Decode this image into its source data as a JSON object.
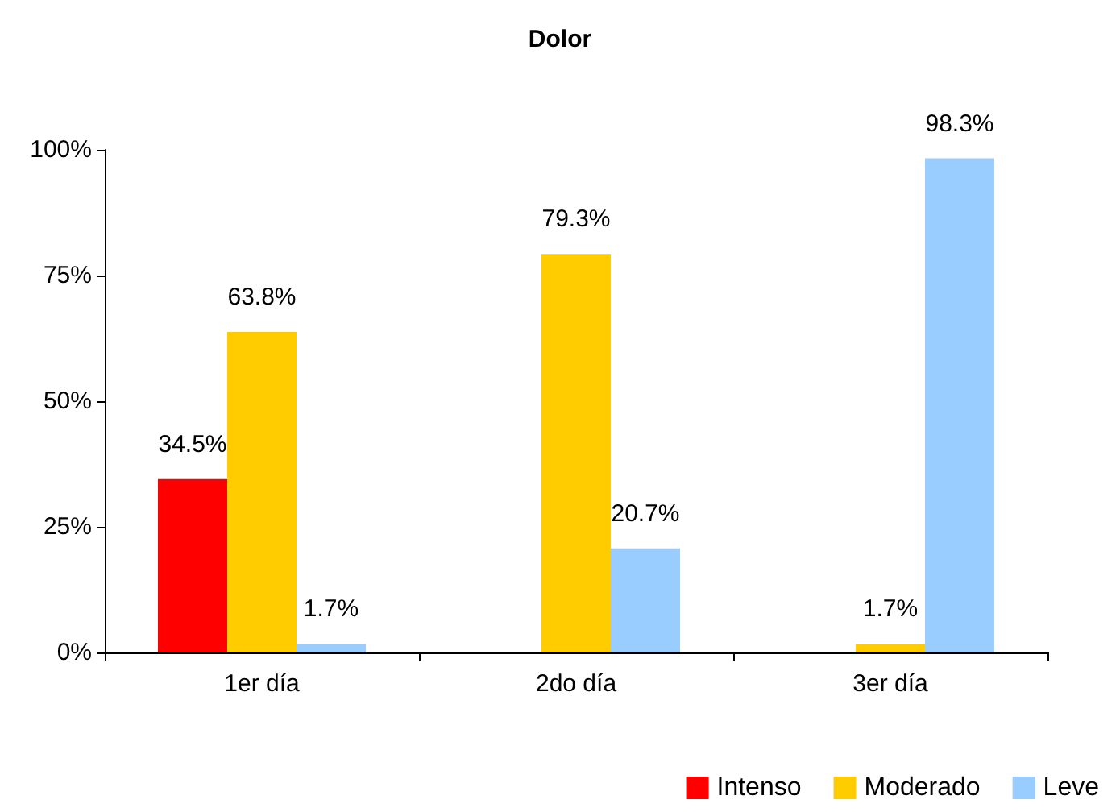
{
  "chart_data": {
    "type": "bar",
    "title": "Dolor",
    "categories": [
      "1er día",
      "2do día",
      "3er día"
    ],
    "series": [
      {
        "name": "Intenso",
        "color": "#ff0000",
        "values": [
          34.5,
          null,
          null
        ],
        "value_labels": [
          "34.5%",
          null,
          null
        ]
      },
      {
        "name": "Moderado",
        "color": "#ffcc00",
        "values": [
          63.8,
          79.3,
          1.7
        ],
        "value_labels": [
          "63.8%",
          "79.3%",
          "1.7%"
        ]
      },
      {
        "name": "Leve",
        "color": "#99ccff",
        "values": [
          1.7,
          20.7,
          98.3
        ],
        "value_labels": [
          "1.7%",
          "20.7%",
          "98.3%"
        ]
      }
    ],
    "ylim": [
      0,
      100
    ],
    "yticks": [
      {
        "value": 0,
        "label": "0%"
      },
      {
        "value": 25,
        "label": "25%"
      },
      {
        "value": 50,
        "label": "50%"
      },
      {
        "value": 75,
        "label": "75%"
      },
      {
        "value": 100,
        "label": "100%"
      }
    ],
    "grid": false,
    "legend": "bottom right"
  }
}
